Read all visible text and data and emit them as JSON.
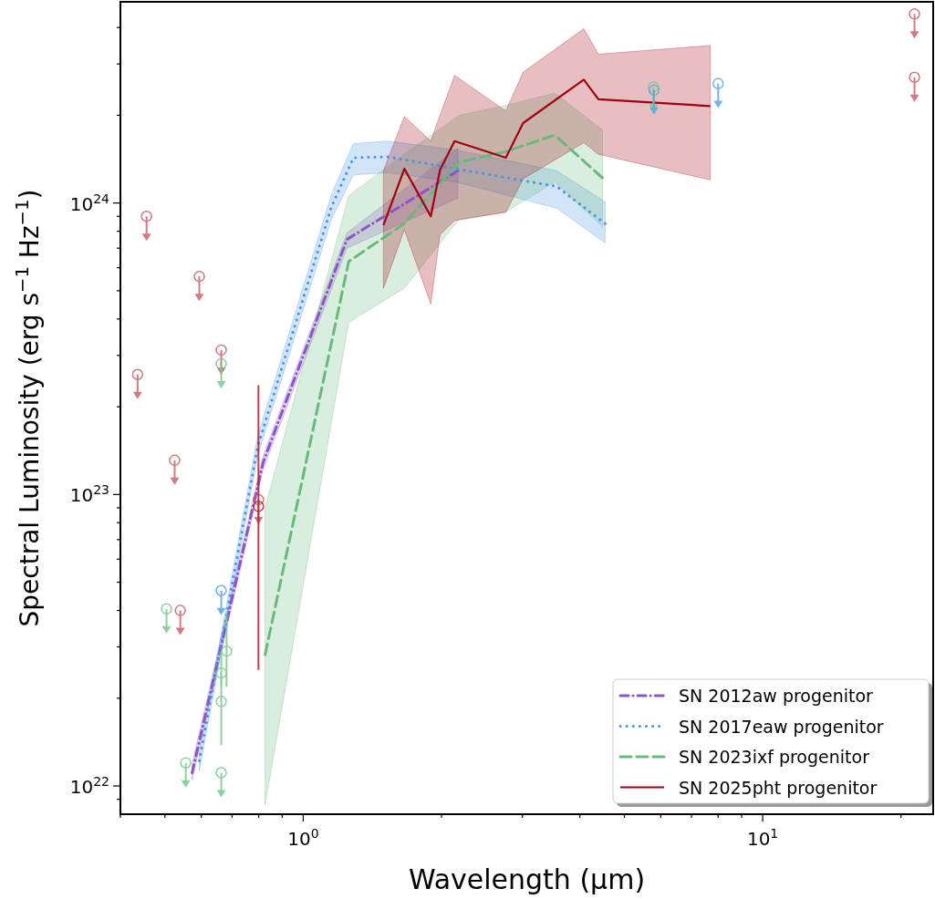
{
  "chart_data": {
    "type": "line",
    "xlabel": "Wavelength (μm)",
    "ylabel": "Spectral Luminosity (erg s$^{−1}$ Hz$^{−1}$)",
    "log": "xy",
    "legend": "bottom right",
    "xlim": [
      0.4,
      23.5
    ],
    "ylim": [
      8e+21,
      4.9e+24
    ],
    "xticks": [
      {
        "value": 0.4,
        "label": null
      },
      {
        "value": 0.5,
        "label": null
      },
      {
        "value": 0.6,
        "label": null
      },
      {
        "value": 0.7,
        "label": null
      },
      {
        "value": 0.8,
        "label": null
      },
      {
        "value": 0.9,
        "label": null
      },
      {
        "value": 1,
        "label": "10$^{0}$"
      },
      {
        "value": 2,
        "label": null
      },
      {
        "value": 3,
        "label": null
      },
      {
        "value": 4,
        "label": null
      },
      {
        "value": 5,
        "label": null
      },
      {
        "value": 6,
        "label": null
      },
      {
        "value": 7,
        "label": null
      },
      {
        "value": 8,
        "label": null
      },
      {
        "value": 9,
        "label": null
      },
      {
        "value": 10,
        "label": "10$^{1}$"
      },
      {
        "value": 20,
        "label": null
      }
    ],
    "yticks": [
      {
        "value": 9e+21,
        "label": null
      },
      {
        "value": 1e+22,
        "label": "10$^{22}$"
      },
      {
        "value": 2e+22,
        "label": null
      },
      {
        "value": 3e+22,
        "label": null
      },
      {
        "value": 4e+22,
        "label": null
      },
      {
        "value": 5e+22,
        "label": null
      },
      {
        "value": 6e+22,
        "label": null
      },
      {
        "value": 7e+22,
        "label": null
      },
      {
        "value": 8e+22,
        "label": null
      },
      {
        "value": 9e+22,
        "label": null
      },
      {
        "value": 1e+23,
        "label": "10$^{23}$"
      },
      {
        "value": 2e+23,
        "label": null
      },
      {
        "value": 3e+23,
        "label": null
      },
      {
        "value": 4e+23,
        "label": null
      },
      {
        "value": 5e+23,
        "label": null
      },
      {
        "value": 6e+23,
        "label": null
      },
      {
        "value": 7e+23,
        "label": null
      },
      {
        "value": 8e+23,
        "label": null
      },
      {
        "value": 9e+23,
        "label": null
      },
      {
        "value": 1e+24,
        "label": "10$^{24}$"
      },
      {
        "value": 2e+24,
        "label": null
      },
      {
        "value": 3e+24,
        "label": null
      },
      {
        "value": 4e+24,
        "label": null
      }
    ],
    "series": [
      {
        "type": "scatter",
        "marker": "circle",
        "color": "#c8646c",
        "x": [
          0.456,
          0.594,
          0.663,
          0.436,
          0.525,
          0.54,
          0.799,
          21.4,
          21.4
        ],
        "values": [
          9e+23,
          5.6e+23,
          3.13e+23,
          2.58e+23,
          1.31e+23,
          4e+22,
          9.6e+22,
          4.45e+24,
          2.7e+24
        ]
      },
      {
        "type": "scatter",
        "marker": "circle",
        "color": "#7cc98c",
        "x": [
          0.663,
          0.504,
          0.555,
          0.663,
          5.78
        ],
        "values": [
          2.81e+23,
          4.05e+22,
          1.2e+22,
          1.11e+22,
          2.5e+24
        ]
      },
      {
        "type": "scatter",
        "marker": "circle",
        "color": "#5aa5ea",
        "x": [
          0.663,
          5.8,
          8.0
        ],
        "values": [
          4.68e+22,
          2.44e+24,
          2.57e+24
        ]
      },
      {
        "type": "scatter",
        "marker": "circle",
        "color": "#7cc98c",
        "x": [
          0.681,
          0.663,
          0.663
        ],
        "values": [
          2.9e+22,
          2.44e+22,
          1.95e+22
        ],
        "errors": [
          [
            2.19e+22,
            3.91e+22
          ],
          [
            2.2e+22,
            2.9e+22
          ],
          [
            1.38e+22,
            2.44e+22
          ]
        ]
      },
      {
        "type": "scatter",
        "marker": "circle",
        "color": "#b0202c",
        "x": [
          0.799
        ],
        "values": [
          9.1e+22
        ],
        "errors": [
          [
            2.5e+22,
            2.37e+23
          ]
        ]
      },
      {
        "name": "SN 2012aw progenitor",
        "line_style": "dashdot",
        "color": "#8a55c8",
        "x": [
          0.573,
          0.818,
          1.245,
          2.17
        ],
        "values": [
          1.11e+22,
          1.29e+23,
          7.5e+23,
          1.29e+24
        ],
        "lower": [
          1.05e+22,
          1.22e+23,
          7e+23,
          1.04e+24
        ],
        "upper": [
          1.19e+22,
          1.36e+23,
          7.9e+23,
          1.54e+24
        ]
      },
      {
        "name": "SN 2017eaw progenitor",
        "line_style": "dotted",
        "color": "#4a94e4",
        "x": [
          0.594,
          0.796,
          1.152,
          1.286,
          1.529,
          2.155,
          3.56,
          4.54
        ],
        "values": [
          1.22e+22,
          1.46e+23,
          9.7e+23,
          1.43e+24,
          1.44e+24,
          1.31e+24,
          1.14e+24,
          8.5e+23
        ],
        "lower": [
          1.13e+22,
          1.36e+23,
          8.8e+23,
          1.25e+24,
          1.27e+24,
          1.18e+24,
          9.6e+23,
          7.3e+23
        ],
        "upper": [
          1.3e+22,
          1.59e+23,
          1.07e+24,
          1.6e+24,
          1.63e+24,
          1.52e+24,
          1.29e+24,
          1.01e+24
        ]
      },
      {
        "name": "SN 2023ixf progenitor",
        "line_style": "dashed",
        "color": "#66bb7a",
        "x": [
          0.826,
          1.256,
          1.66,
          2.185,
          2.75,
          3.53,
          4.48
        ],
        "values": [
          2.82e+22,
          6.3e+23,
          8.5e+23,
          1.38e+24,
          1.5e+24,
          1.71e+24,
          1.22e+24
        ],
        "lower": [
          8.6e+21,
          3.9e+23,
          5.1e+23,
          8.8e+23,
          9.3e+23,
          1.18e+24,
          8.3e+23
        ],
        "upper": [
          9e+22,
          1.06e+24,
          1.47e+24,
          2e+24,
          2.16e+24,
          2.38e+24,
          1.78e+24
        ]
      },
      {
        "name": "SN 2025pht progenitor",
        "line_style": "solid",
        "color": "#a00010",
        "x": [
          1.495,
          1.66,
          1.895,
          1.985,
          2.135,
          2.76,
          3.01,
          4.08,
          4.39,
          7.69
        ],
        "values": [
          8.4e+23,
          1.31e+24,
          9e+23,
          1.3e+24,
          1.63e+24,
          1.43e+24,
          1.88e+24,
          2.65e+24,
          2.27e+24,
          2.15e+24
        ],
        "lower": [
          5.1e+23,
          8.1e+23,
          4.5e+23,
          7.8e+23,
          8.7e+23,
          9.3e+23,
          1.21e+24,
          1.61e+24,
          1.47e+24,
          1.2e+24
        ],
        "upper": [
          1.29e+24,
          1.98e+24,
          1.63e+24,
          2e+24,
          2.74e+24,
          2.07e+24,
          2.81e+24,
          3.96e+24,
          3.24e+24,
          3.47e+24
        ]
      }
    ]
  }
}
